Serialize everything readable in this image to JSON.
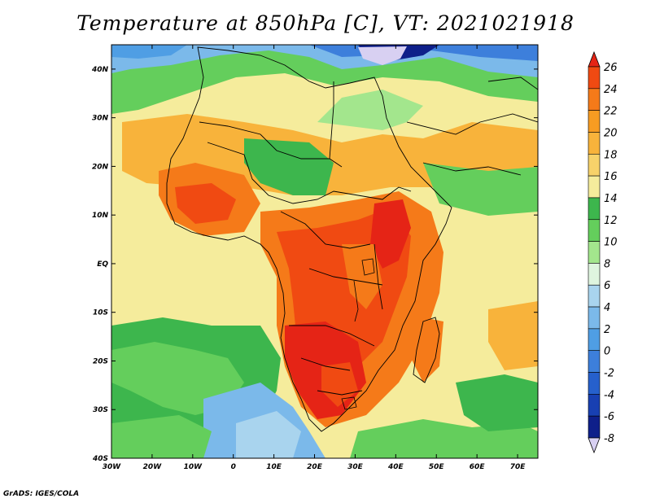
{
  "title": "Temperature at 850hPa [C], VT: 2021021918",
  "credit": "GrADS: IGES/COLA",
  "map": {
    "lat_ticks": [
      "40N",
      "30N",
      "20N",
      "10N",
      "EQ",
      "10S",
      "20S",
      "30S",
      "40S"
    ],
    "lon_ticks": [
      "30W",
      "20W",
      "10W",
      "0",
      "10E",
      "20E",
      "30E",
      "40E",
      "50E",
      "60E",
      "70E"
    ],
    "extent": {
      "lon_min": -30,
      "lon_max": 75,
      "lat_min": -40,
      "lat_max": 45
    }
  },
  "colorbar": {
    "unit": "C",
    "levels": [
      "26",
      "24",
      "22",
      "20",
      "18",
      "16",
      "14",
      "12",
      "10",
      "8",
      "6",
      "4",
      "2",
      "0",
      "-2",
      "-4",
      "-6",
      "-8"
    ],
    "colors": [
      "#e52416",
      "#f04a12",
      "#f57a19",
      "#f79c22",
      "#f8b33b",
      "#f7d26a",
      "#f5ec9c",
      "#3db64d",
      "#64ce5c",
      "#a3e68d",
      "#dff5df",
      "#a9d4ee",
      "#7bb9ea",
      "#4f9ee4",
      "#3d7fdb",
      "#2660cc",
      "#1840b2",
      "#0e1f8a",
      "#d8d0f2"
    ]
  }
}
